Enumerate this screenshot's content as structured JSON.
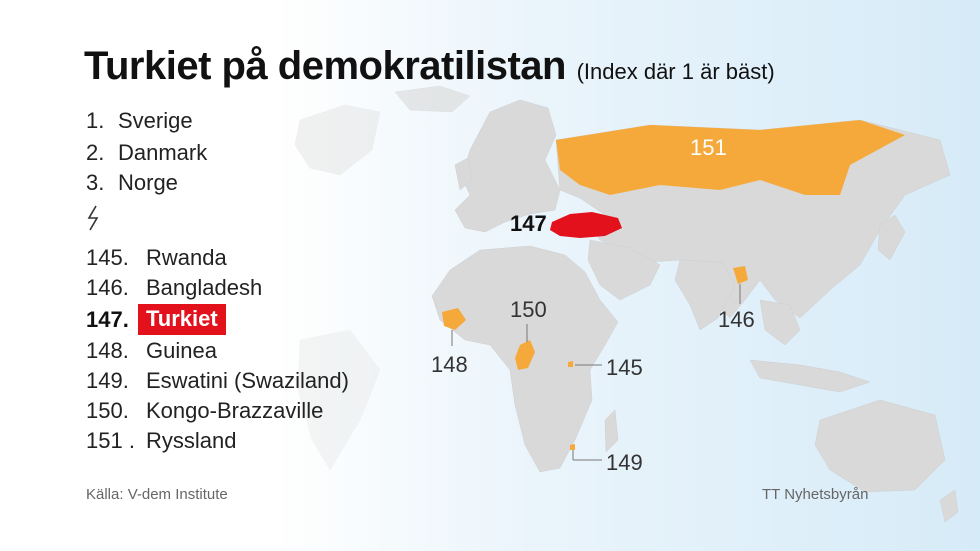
{
  "title": "Turkiet på demokratilistan",
  "subtitle": "(Index där 1 är bäst)",
  "top_ranks": [
    {
      "rank": "1.",
      "country": "Sverige"
    },
    {
      "rank": "2.",
      "country": "Danmark"
    },
    {
      "rank": "3.",
      "country": "Norge"
    }
  ],
  "bottom_ranks": [
    {
      "rank": "145.",
      "country": "Rwanda"
    },
    {
      "rank": "146.",
      "country": "Bangladesh"
    },
    {
      "rank": "147.",
      "country": "Turkiet"
    },
    {
      "rank": "148.",
      "country": "Guinea"
    },
    {
      "rank": "149.",
      "country": "Eswatini (Swaziland)"
    },
    {
      "rank": "150.",
      "country": "Kongo-Brazzaville"
    },
    {
      "rank": "151 .",
      "country": "Ryssland"
    }
  ],
  "map_labels": {
    "russia": "151",
    "turkey": "147",
    "kongo": "150",
    "guinea": "148",
    "rwanda": "145",
    "bangladesh": "146",
    "eswatini": "149"
  },
  "source": "Källa: V-dem Institute",
  "credit": "TT Nyhetsbyrån",
  "colors": {
    "land": "#d9d9d9",
    "highlight": "#f5a93b",
    "turkey": "#e3111b",
    "ocean": "#d6ebf8"
  }
}
